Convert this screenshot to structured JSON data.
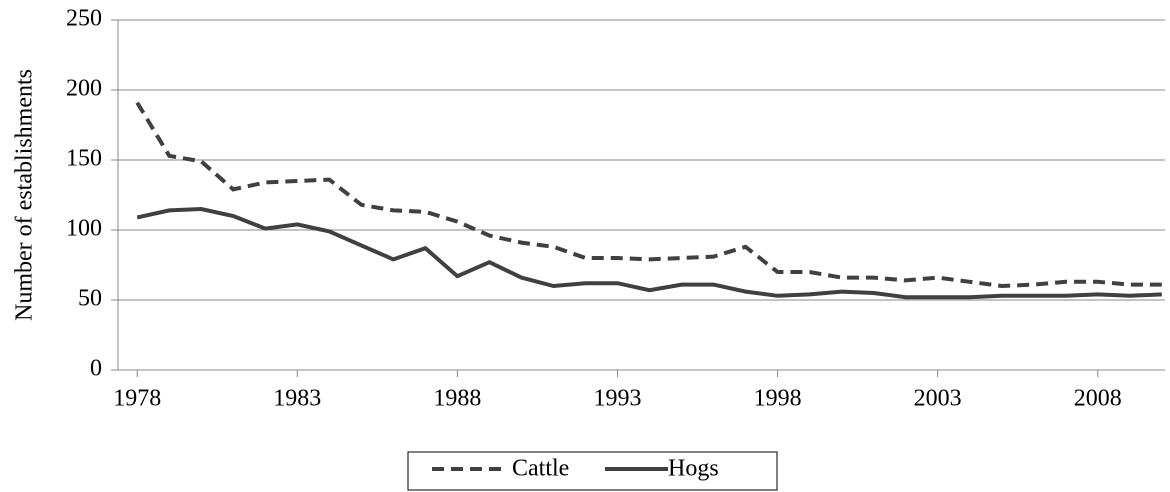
{
  "chart_data": {
    "type": "line",
    "ylabel": "Number of establishments",
    "x": [
      1978,
      1979,
      1980,
      1981,
      1982,
      1983,
      1984,
      1985,
      1986,
      1987,
      1988,
      1989,
      1990,
      1991,
      1992,
      1993,
      1994,
      1995,
      1996,
      1997,
      1998,
      1999,
      2000,
      2001,
      2002,
      2003,
      2004,
      2005,
      2006,
      2007,
      2008,
      2009,
      2010
    ],
    "series": [
      {
        "name": "Cattle",
        "color": "#404040",
        "style": "dashed",
        "values": [
          191,
          153,
          149,
          129,
          134,
          135,
          136,
          118,
          114,
          113,
          106,
          96,
          91,
          88,
          80,
          80,
          79,
          80,
          81,
          88,
          70,
          70,
          66,
          66,
          64,
          66,
          63,
          60,
          61,
          63,
          63,
          61,
          61
        ]
      },
      {
        "name": "Hogs",
        "color": "#404040",
        "style": "solid",
        "values": [
          109,
          114,
          115,
          110,
          101,
          104,
          99,
          89,
          79,
          87,
          67,
          77,
          66,
          60,
          62,
          62,
          57,
          61,
          61,
          56,
          53,
          54,
          56,
          55,
          52,
          52,
          52,
          53,
          53,
          53,
          54,
          53,
          54
        ]
      }
    ],
    "xlim": [
      1977.4,
      2010.1
    ],
    "xticks": [
      1978,
      1983,
      1988,
      1993,
      1998,
      2003,
      2008
    ],
    "ylim": [
      0,
      250
    ],
    "yticks": [
      0,
      50,
      100,
      150,
      200,
      250
    ],
    "grid": true,
    "legend": "bottom"
  }
}
